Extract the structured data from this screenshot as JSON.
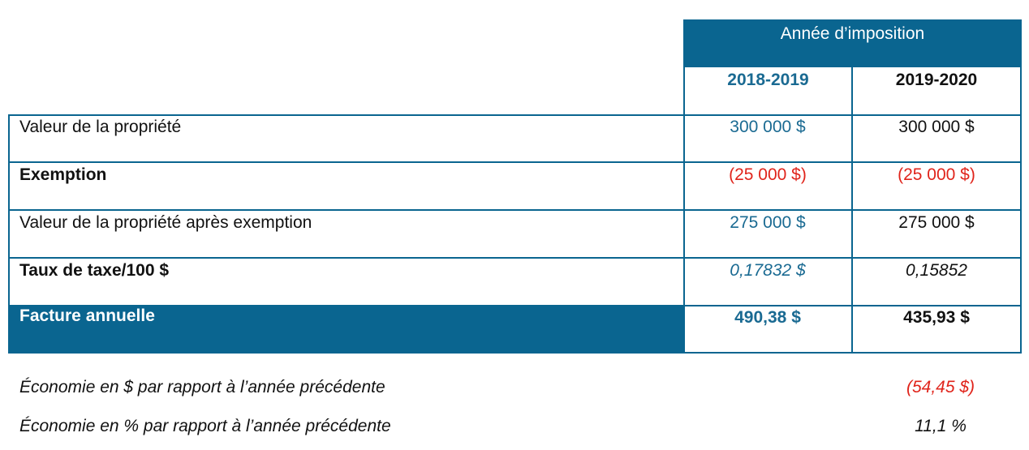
{
  "header": {
    "title": "Année d’imposition",
    "years": [
      "2018-2019",
      "2019-2020"
    ]
  },
  "rows": [
    {
      "label": "Valeur de la propriété",
      "v1": "300 000 $",
      "v2": "300 000 $"
    },
    {
      "label": "Exemption",
      "v1": "(25 000 $)",
      "v2": "(25 000 $)"
    },
    {
      "label": "Valeur de la propriété après exemption",
      "v1": "275 000 $",
      "v2": "275 000 $"
    },
    {
      "label": "Taux de taxe/100 $",
      "v1": "0,17832 $",
      "v2": "0,15852"
    },
    {
      "label": "Facture annuelle",
      "v1": "490,38 $",
      "v2": "435,93 $"
    }
  ],
  "notes": [
    {
      "label": "Économie en $ par rapport à l’année précédente",
      "value": "(54,45 $)"
    },
    {
      "label": "Économie en % par rapport à l’année précédente",
      "value": "11,1 %"
    }
  ],
  "colors": {
    "band": "#0a6590",
    "year1_text": "#1a6a92",
    "negative": "#e0241b"
  }
}
